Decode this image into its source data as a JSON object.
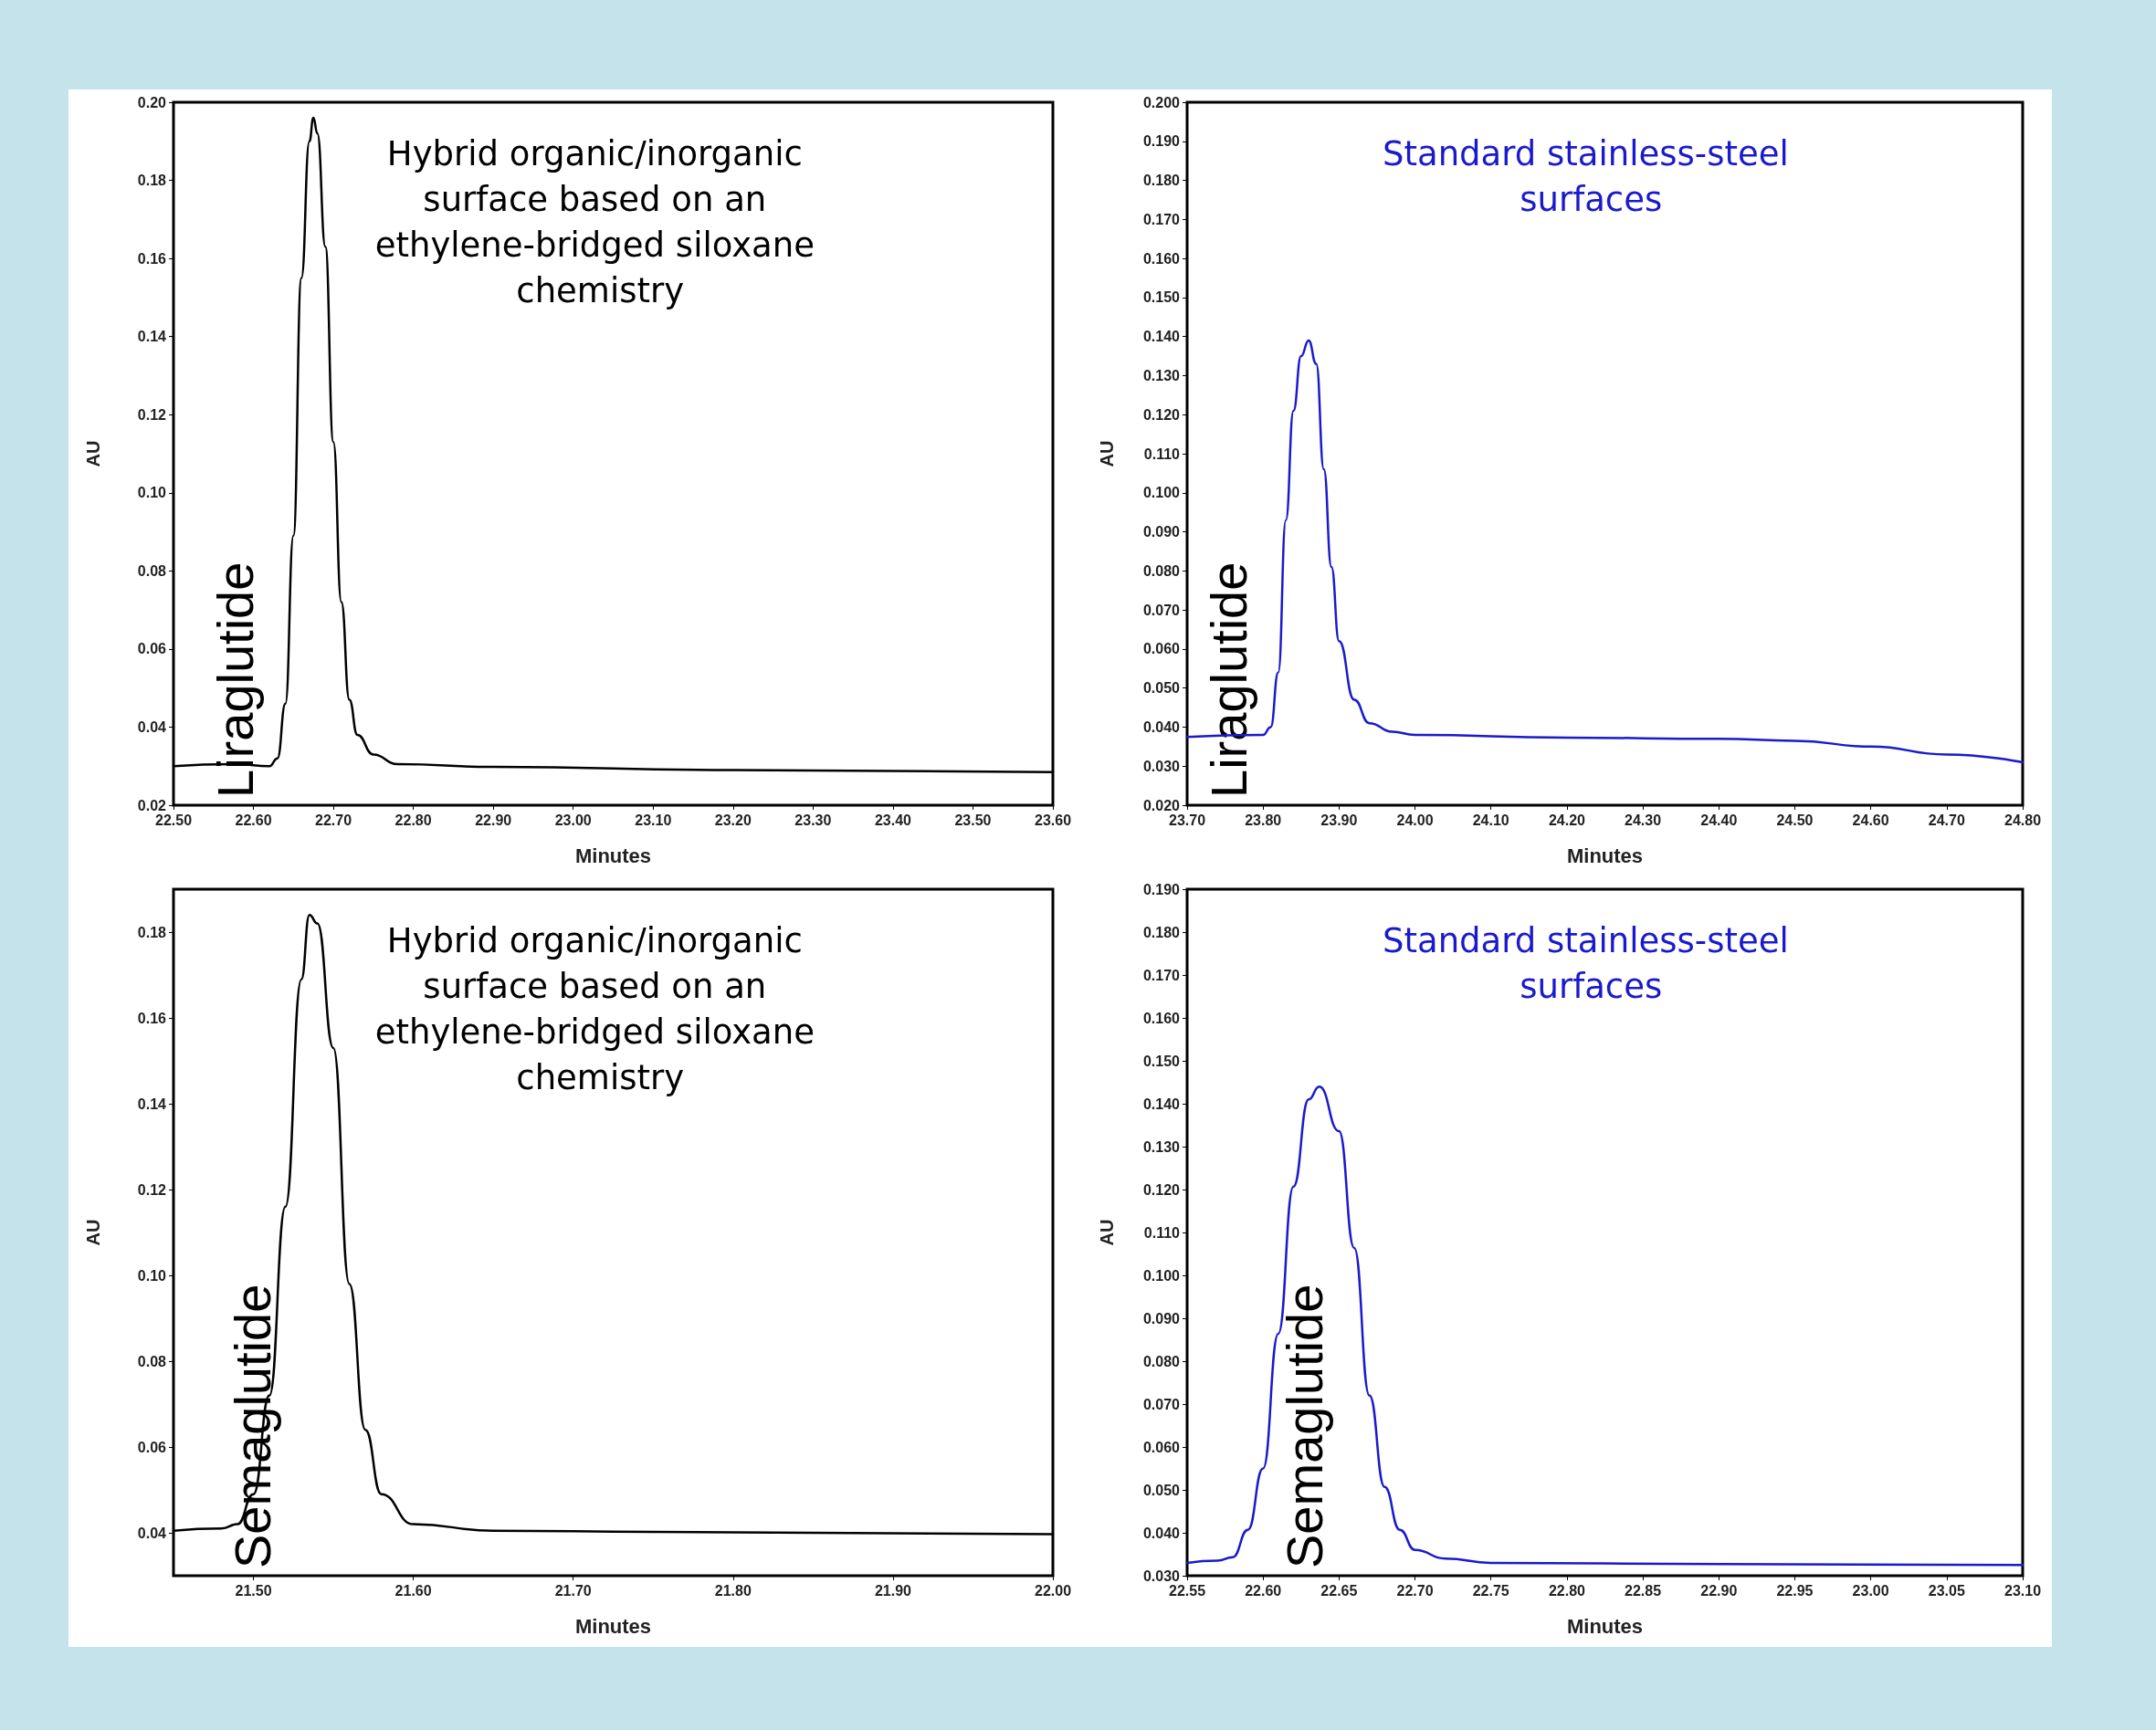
{
  "chart_data": [
    {
      "type": "line",
      "title": "Hybrid organic/inorganic surface based on an ethylene-bridged siloxane chemistry",
      "xlabel": "Minutes",
      "ylabel": "AU",
      "annotations": [
        "Liraglutide"
      ],
      "grid": false,
      "marker": "none",
      "line_style": "solid",
      "xlim": [
        22.5,
        23.6
      ],
      "xticks": [
        {
          "value": 22.5,
          "label": "22.50"
        },
        {
          "value": 22.6,
          "label": "22.60"
        },
        {
          "value": 22.7,
          "label": "22.70"
        },
        {
          "value": 22.8,
          "label": "22.80"
        },
        {
          "value": 22.9,
          "label": "22.90"
        },
        {
          "value": 23.0,
          "label": "23.00"
        },
        {
          "value": 23.1,
          "label": "23.10"
        },
        {
          "value": 23.2,
          "label": "23.20"
        },
        {
          "value": 23.3,
          "label": "23.30"
        },
        {
          "value": 23.4,
          "label": "23.40"
        },
        {
          "value": 23.5,
          "label": "23.50"
        },
        {
          "value": 23.6,
          "label": "23.60"
        }
      ],
      "ylim": [
        0.02,
        0.2
      ],
      "yticks": [
        {
          "value": 0.02,
          "label": "0.02"
        },
        {
          "value": 0.04,
          "label": "0.04"
        },
        {
          "value": 0.06,
          "label": "0.06"
        },
        {
          "value": 0.08,
          "label": "0.08"
        },
        {
          "value": 0.1,
          "label": "0.10"
        },
        {
          "value": 0.12,
          "label": "0.12"
        },
        {
          "value": 0.14,
          "label": "0.14"
        },
        {
          "value": 0.16,
          "label": "0.16"
        },
        {
          "value": 0.18,
          "label": "0.18"
        },
        {
          "value": 0.2,
          "label": "0.20"
        }
      ],
      "series": [
        {
          "color": "#000000",
          "x": [
            22.5,
            22.58,
            22.62,
            22.63,
            22.64,
            22.65,
            22.66,
            22.67,
            22.675,
            22.68,
            22.69,
            22.7,
            22.71,
            22.72,
            22.73,
            22.75,
            22.78,
            22.9,
            23.2,
            23.6
          ],
          "values": [
            0.03,
            0.0305,
            0.03,
            0.032,
            0.046,
            0.089,
            0.155,
            0.19,
            0.196,
            0.192,
            0.163,
            0.113,
            0.072,
            0.047,
            0.038,
            0.033,
            0.0305,
            0.0298,
            0.029,
            0.0285
          ]
        }
      ]
    },
    {
      "type": "line",
      "title": "Standard stainless-steel surfaces",
      "xlabel": "Minutes",
      "ylabel": "AU",
      "annotations": [
        "Liraglutide"
      ],
      "grid": false,
      "marker": "none",
      "line_style": "solid",
      "xlim": [
        23.7,
        24.8
      ],
      "xticks": [
        {
          "value": 23.7,
          "label": "23.70"
        },
        {
          "value": 23.8,
          "label": "23.80"
        },
        {
          "value": 23.9,
          "label": "23.90"
        },
        {
          "value": 24.0,
          "label": "24.00"
        },
        {
          "value": 24.1,
          "label": "24.10"
        },
        {
          "value": 24.2,
          "label": "24.20"
        },
        {
          "value": 24.3,
          "label": "24.30"
        },
        {
          "value": 24.4,
          "label": "24.40"
        },
        {
          "value": 24.5,
          "label": "24.50"
        },
        {
          "value": 24.6,
          "label": "24.60"
        },
        {
          "value": 24.7,
          "label": "24.70"
        },
        {
          "value": 24.8,
          "label": "24.80"
        }
      ],
      "ylim": [
        0.02,
        0.2
      ],
      "yticks": [
        {
          "value": 0.02,
          "label": "0.020"
        },
        {
          "value": 0.03,
          "label": "0.030"
        },
        {
          "value": 0.04,
          "label": "0.040"
        },
        {
          "value": 0.05,
          "label": "0.050"
        },
        {
          "value": 0.06,
          "label": "0.060"
        },
        {
          "value": 0.07,
          "label": "0.070"
        },
        {
          "value": 0.08,
          "label": "0.080"
        },
        {
          "value": 0.09,
          "label": "0.090"
        },
        {
          "value": 0.1,
          "label": "0.100"
        },
        {
          "value": 0.11,
          "label": "0.110"
        },
        {
          "value": 0.12,
          "label": "0.120"
        },
        {
          "value": 0.13,
          "label": "0.130"
        },
        {
          "value": 0.14,
          "label": "0.140"
        },
        {
          "value": 0.15,
          "label": "0.150"
        },
        {
          "value": 0.16,
          "label": "0.160"
        },
        {
          "value": 0.17,
          "label": "0.170"
        },
        {
          "value": 0.18,
          "label": "0.180"
        },
        {
          "value": 0.19,
          "label": "0.190"
        },
        {
          "value": 0.2,
          "label": "0.200"
        }
      ],
      "series": [
        {
          "color": "#1a1acc",
          "x": [
            23.7,
            23.8,
            23.81,
            23.82,
            23.83,
            23.84,
            23.85,
            23.86,
            23.87,
            23.88,
            23.89,
            23.9,
            23.92,
            23.94,
            23.97,
            24.0,
            24.2,
            24.4,
            24.5,
            24.6,
            24.7,
            24.8
          ],
          "values": [
            0.0375,
            0.038,
            0.04,
            0.054,
            0.093,
            0.121,
            0.135,
            0.139,
            0.133,
            0.106,
            0.081,
            0.062,
            0.047,
            0.041,
            0.0388,
            0.038,
            0.0373,
            0.037,
            0.0365,
            0.035,
            0.033,
            0.031
          ]
        }
      ]
    },
    {
      "type": "line",
      "title": "Hybrid organic/inorganic surface based on an ethylene-bridged siloxane chemistry",
      "xlabel": "Minutes",
      "ylabel": "AU",
      "annotations": [
        "Semaglutide"
      ],
      "grid": false,
      "marker": "none",
      "line_style": "solid",
      "xlim": [
        21.45,
        22.0
      ],
      "xticks": [
        {
          "value": 21.5,
          "label": "21.50"
        },
        {
          "value": 21.6,
          "label": "21.60"
        },
        {
          "value": 21.7,
          "label": "21.70"
        },
        {
          "value": 21.8,
          "label": "21.80"
        },
        {
          "value": 21.9,
          "label": "21.90"
        },
        {
          "value": 22.0,
          "label": "22.00"
        }
      ],
      "ylim": [
        0.03,
        0.19
      ],
      "yticks": [
        {
          "value": 0.04,
          "label": "0.04"
        },
        {
          "value": 0.06,
          "label": "0.06"
        },
        {
          "value": 0.08,
          "label": "0.08"
        },
        {
          "value": 0.1,
          "label": "0.10"
        },
        {
          "value": 0.12,
          "label": "0.12"
        },
        {
          "value": 0.14,
          "label": "0.14"
        },
        {
          "value": 0.16,
          "label": "0.16"
        },
        {
          "value": 0.18,
          "label": "0.18"
        }
      ],
      "series": [
        {
          "color": "#000000",
          "x": [
            21.45,
            21.48,
            21.49,
            21.5,
            21.51,
            21.52,
            21.53,
            21.535,
            21.54,
            21.55,
            21.56,
            21.57,
            21.58,
            21.6,
            21.65,
            21.75,
            22.0
          ],
          "values": [
            0.0405,
            0.041,
            0.042,
            0.049,
            0.072,
            0.116,
            0.169,
            0.184,
            0.182,
            0.153,
            0.098,
            0.064,
            0.049,
            0.042,
            0.0405,
            0.0402,
            0.0397
          ]
        }
      ]
    },
    {
      "type": "line",
      "title": "Standard stainless-steel surfaces",
      "xlabel": "Minutes",
      "ylabel": "AU",
      "annotations": [
        "Semaglutide"
      ],
      "grid": false,
      "marker": "none",
      "line_style": "solid",
      "xlim": [
        22.55,
        23.1
      ],
      "xticks": [
        {
          "value": 22.55,
          "label": "22.55"
        },
        {
          "value": 22.6,
          "label": "22.60"
        },
        {
          "value": 22.65,
          "label": "22.65"
        },
        {
          "value": 22.7,
          "label": "22.70"
        },
        {
          "value": 22.75,
          "label": "22.75"
        },
        {
          "value": 22.8,
          "label": "22.80"
        },
        {
          "value": 22.85,
          "label": "22.85"
        },
        {
          "value": 22.9,
          "label": "22.90"
        },
        {
          "value": 22.95,
          "label": "22.95"
        },
        {
          "value": 23.0,
          "label": "23.00"
        },
        {
          "value": 23.05,
          "label": "23.05"
        },
        {
          "value": 23.1,
          "label": "23.10"
        }
      ],
      "ylim": [
        0.03,
        0.19
      ],
      "yticks": [
        {
          "value": 0.03,
          "label": "0.030"
        },
        {
          "value": 0.04,
          "label": "0.040"
        },
        {
          "value": 0.05,
          "label": "0.050"
        },
        {
          "value": 0.06,
          "label": "0.060"
        },
        {
          "value": 0.07,
          "label": "0.070"
        },
        {
          "value": 0.08,
          "label": "0.080"
        },
        {
          "value": 0.09,
          "label": "0.090"
        },
        {
          "value": 0.1,
          "label": "0.100"
        },
        {
          "value": 0.11,
          "label": "0.110"
        },
        {
          "value": 0.12,
          "label": "0.120"
        },
        {
          "value": 0.13,
          "label": "0.130"
        },
        {
          "value": 0.14,
          "label": "0.140"
        },
        {
          "value": 0.15,
          "label": "0.150"
        },
        {
          "value": 0.16,
          "label": "0.160"
        },
        {
          "value": 0.17,
          "label": "0.170"
        },
        {
          "value": 0.18,
          "label": "0.180"
        },
        {
          "value": 0.19,
          "label": "0.190"
        }
      ],
      "series": [
        {
          "color": "#1a1acc",
          "x": [
            22.55,
            22.57,
            22.58,
            22.59,
            22.6,
            22.61,
            22.62,
            22.63,
            22.637,
            22.65,
            22.66,
            22.67,
            22.68,
            22.69,
            22.7,
            22.72,
            22.75,
            22.9,
            23.1
          ],
          "values": [
            0.033,
            0.0335,
            0.0343,
            0.0407,
            0.055,
            0.0864,
            0.1207,
            0.141,
            0.144,
            0.1336,
            0.1064,
            0.072,
            0.0507,
            0.0407,
            0.036,
            0.034,
            0.033,
            0.0327,
            0.0325
          ]
        }
      ]
    }
  ]
}
